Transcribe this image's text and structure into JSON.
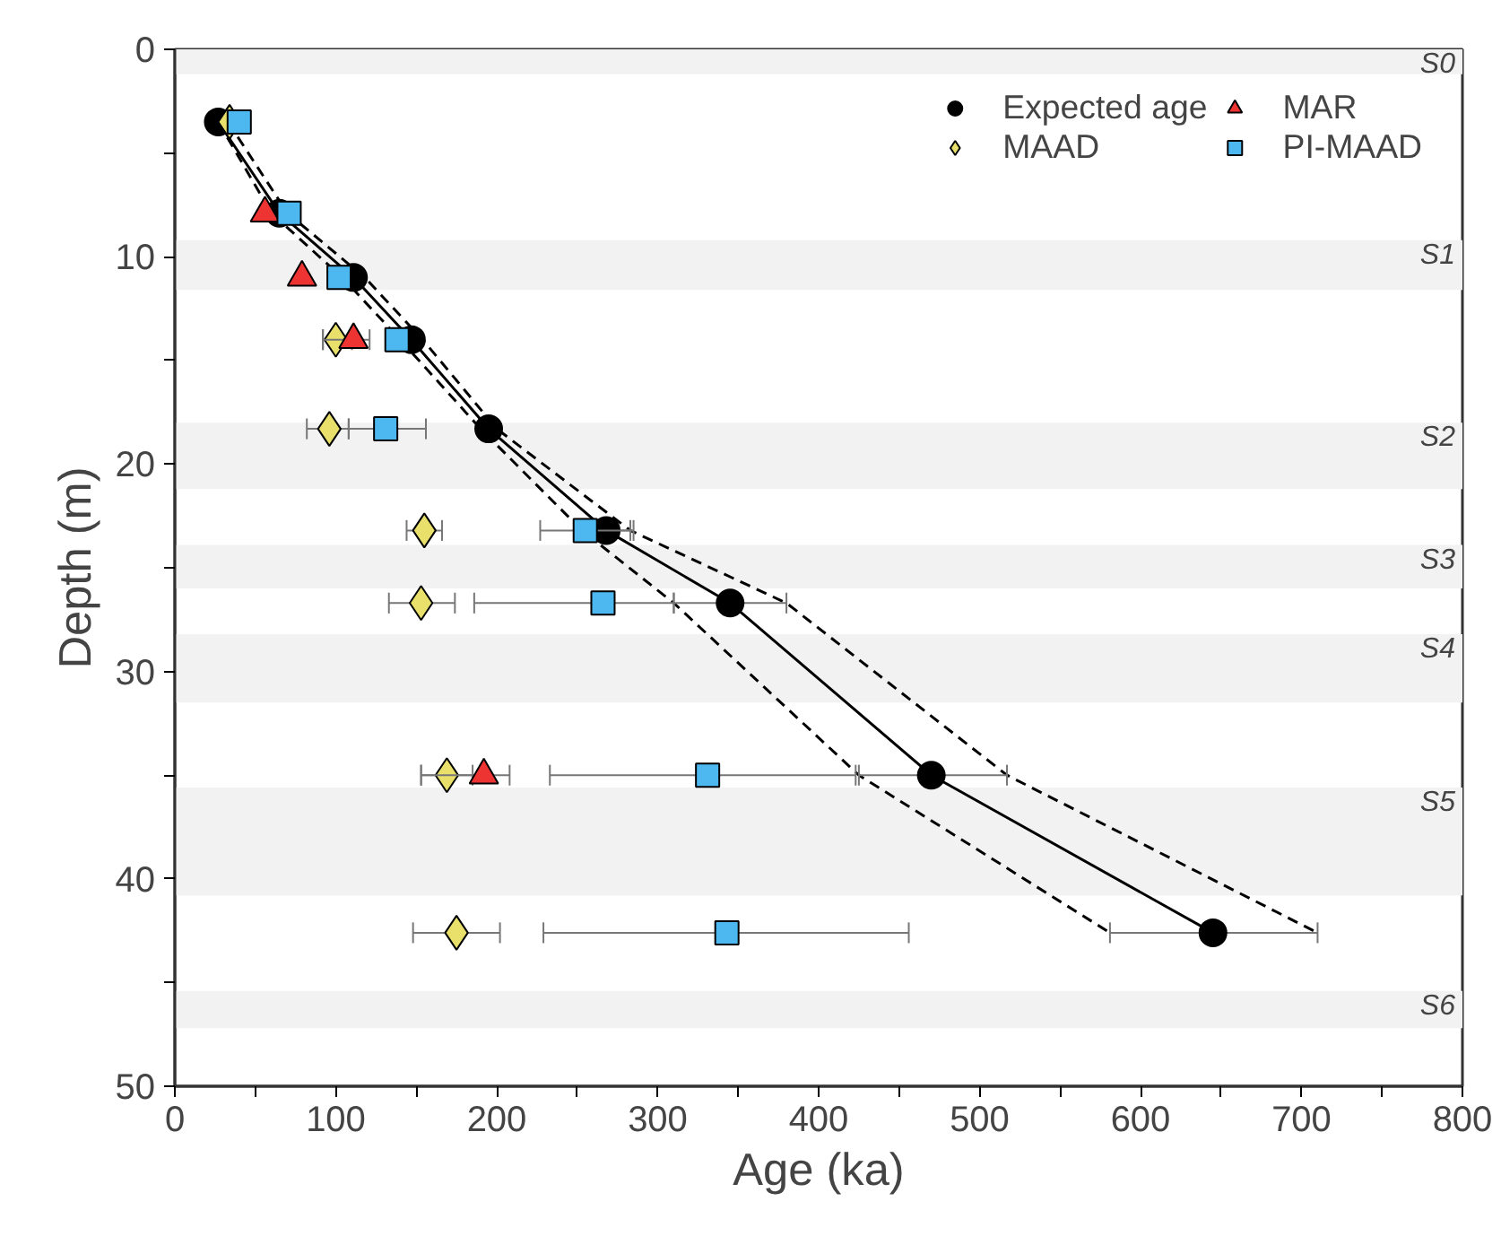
{
  "chart_data": {
    "type": "scatter",
    "xlabel": "Age (ka)",
    "ylabel": "Depth (m)",
    "xlim": [
      0,
      800
    ],
    "ylim": [
      50,
      0
    ],
    "xticks": [
      0,
      {
        "value": 50,
        "label": null
      },
      100,
      {
        "value": 150,
        "label": null
      },
      200,
      {
        "value": 250,
        "label": null
      },
      300,
      {
        "value": 350,
        "label": null
      },
      400,
      {
        "value": 450,
        "label": null
      },
      500,
      {
        "value": 550,
        "label": null
      },
      600,
      {
        "value": 650,
        "label": null
      },
      700,
      {
        "value": 750,
        "label": null
      },
      800
    ],
    "yticks": [
      0,
      {
        "value": 5,
        "label": null
      },
      10,
      {
        "value": 15,
        "label": null
      },
      20,
      {
        "value": 25,
        "label": null
      },
      30,
      {
        "value": 35,
        "label": null
      },
      40,
      {
        "value": 45,
        "label": null
      },
      50
    ],
    "grid": false,
    "legend": "top right",
    "bands": [
      {
        "axis": "y",
        "from": 0,
        "to": 1.2,
        "label": "S0",
        "color": "#f2f2f2"
      },
      {
        "axis": "y",
        "from": 9.2,
        "to": 11.6,
        "label": "S1",
        "color": "#f2f2f2"
      },
      {
        "axis": "y",
        "from": 18,
        "to": 21.2,
        "label": "S2",
        "color": "#f2f2f2"
      },
      {
        "axis": "y",
        "from": 23.9,
        "to": 26,
        "label": "S3",
        "color": "#f2f2f2"
      },
      {
        "axis": "y",
        "from": 28.2,
        "to": 31.5,
        "label": "S4",
        "color": "#f2f2f2"
      },
      {
        "axis": "y",
        "from": 35.6,
        "to": 40.8,
        "label": "S5",
        "color": "#f2f2f2"
      },
      {
        "axis": "y",
        "from": 45.4,
        "to": 47.2,
        "label": "S6",
        "color": "#f2f2f2"
      }
    ],
    "series": [
      {
        "type": "line",
        "color": "#000000",
        "line_style": "dashed",
        "marker": "none",
        "x": [
          27,
          60,
          104,
          140,
          190,
          253,
          310,
          425,
          581
        ],
        "values": [
          3.5,
          7.9,
          11,
          14,
          18.3,
          23.2,
          26.7,
          35,
          42.6
        ]
      },
      {
        "type": "line",
        "color": "#000000",
        "line_style": "dashed",
        "marker": "none",
        "x": [
          33,
          70,
          118,
          154,
          200,
          283,
          380,
          517,
          710
        ],
        "values": [
          3.5,
          7.9,
          11,
          14,
          18.3,
          23.2,
          26.7,
          35,
          42.6
        ]
      },
      {
        "type": "line",
        "name": "Expected age",
        "color": "#000000",
        "line_style": "solid",
        "marker": "circle",
        "x": [
          27,
          65,
          111,
          147,
          195,
          268,
          345,
          470,
          645
        ],
        "values": [
          3.5,
          7.9,
          11,
          14,
          18.3,
          23.2,
          26.7,
          35,
          42.6
        ],
        "xerrors": [
          null,
          null,
          null,
          null,
          null,
          [
            268,
            283
          ],
          [
            310,
            380
          ],
          [
            425,
            517
          ],
          [
            581,
            710
          ]
        ]
      },
      {
        "name": "MAAD",
        "color": "#e8e06a",
        "marker": "diamond",
        "x": [
          34,
          61,
          79,
          100,
          96,
          155,
          153,
          169,
          175
        ],
        "values": [
          3.5,
          null,
          null,
          14,
          18.3,
          23.2,
          26.7,
          35,
          42.6
        ],
        "xerrors": [
          null,
          null,
          null,
          [
            92,
            110
          ],
          [
            82,
            108
          ],
          [
            144,
            166
          ],
          [
            133,
            174
          ],
          [
            153,
            185
          ],
          [
            148,
            202
          ]
        ]
      },
      {
        "name": "MAR",
        "color": "#ee3333",
        "marker": "triangle",
        "x": [
          56,
          79,
          111,
          192
        ],
        "values": [
          7.9,
          11,
          14,
          35
        ],
        "xerrors": [
          null,
          null,
          [
            92,
            121
          ],
          [
            153,
            208
          ]
        ]
      },
      {
        "name": "PI-MAAD",
        "color": "#4db8f0",
        "marker": "square",
        "x": [
          40,
          71,
          102,
          138,
          131,
          255,
          266,
          331,
          343
        ],
        "values": [
          3.5,
          7.9,
          11,
          14,
          18.3,
          23.2,
          26.7,
          35,
          42.6
        ],
        "xerrors": [
          null,
          null,
          null,
          null,
          [
            108,
            156
          ],
          [
            227,
            285
          ],
          [
            186,
            310
          ],
          [
            233,
            423
          ],
          [
            229,
            456
          ]
        ]
      }
    ]
  }
}
